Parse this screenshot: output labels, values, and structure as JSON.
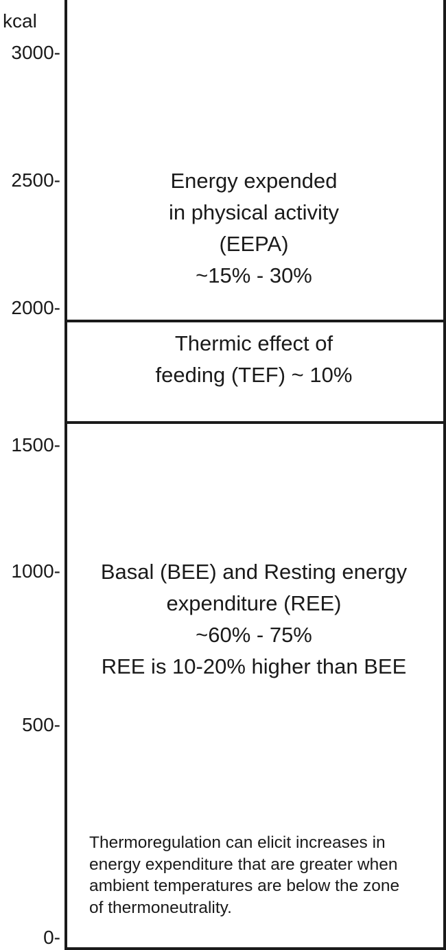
{
  "axis": {
    "unit": "kcal",
    "ticks": [
      {
        "value": 3000,
        "label": "3000-"
      },
      {
        "value": 2500,
        "label": "2500-"
      },
      {
        "value": 2000,
        "label": "2000-"
      },
      {
        "value": 1500,
        "label": "1500-"
      },
      {
        "value": 1000,
        "label": "1000-"
      },
      {
        "value": 500,
        "label": "500-"
      },
      {
        "value": 0,
        "label": "0-"
      }
    ]
  },
  "segments": {
    "eepa": {
      "lines": [
        "Energy expended",
        "in physical activity",
        "(EEPA)",
        "~15% - 30%"
      ]
    },
    "tef": {
      "lines": [
        "Thermic effect of",
        "feeding (TEF) ~ 10%"
      ]
    },
    "ree": {
      "lines": [
        "Basal (BEE) and Resting energy",
        "expenditure (REE)",
        "~60% - 75%",
        "REE is 10-20% higher than BEE"
      ]
    }
  },
  "note": {
    "lines": [
      "Thermoregulation can elicit increases in",
      "energy expenditure that are greater when",
      "ambient temperatures are below the zone",
      "of thermoneutrality."
    ]
  }
}
